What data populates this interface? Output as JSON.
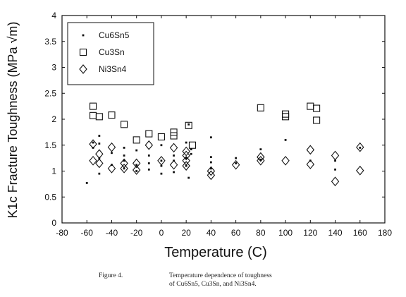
{
  "chart_data": {
    "type": "scatter",
    "title": "",
    "xlabel": "Temperature (C)",
    "ylabel": "K1c Fracture Toughness (MPa √m)",
    "xlim": [
      -80,
      180
    ],
    "ylim": [
      0,
      4
    ],
    "x_ticks": [
      "-80",
      "-60",
      "-40",
      "-20",
      "0",
      "20",
      "40",
      "60",
      "80",
      "100",
      "120",
      "140",
      "160",
      "180"
    ],
    "y_ticks": [
      "0",
      "0.5",
      "1",
      "1.5",
      "2",
      "2.5",
      "3",
      "3.5",
      "4"
    ],
    "legend_position": "top-left",
    "grid": false,
    "series": [
      {
        "name": "Cu6Sn5",
        "marker": "dot",
        "points": [
          [
            -60,
            0.77
          ],
          [
            -55,
            1.55
          ],
          [
            -55,
            1.45
          ],
          [
            -50,
            1.68
          ],
          [
            -50,
            1.53
          ],
          [
            -50,
            1.25
          ],
          [
            -50,
            0.95
          ],
          [
            -40,
            1.35
          ],
          [
            -40,
            1.12
          ],
          [
            -30,
            1.45
          ],
          [
            -30,
            1.3
          ],
          [
            -30,
            1.2
          ],
          [
            -30,
            1.05
          ],
          [
            -20,
            1.4
          ],
          [
            -20,
            1.12
          ],
          [
            -20,
            1.0
          ],
          [
            -10,
            1.3
          ],
          [
            -10,
            1.15
          ],
          [
            -10,
            1.03
          ],
          [
            0,
            1.5
          ],
          [
            0,
            1.2
          ],
          [
            0,
            1.1
          ],
          [
            0,
            0.95
          ],
          [
            10,
            1.3
          ],
          [
            10,
            1.2
          ],
          [
            10,
            0.98
          ],
          [
            20,
            1.55
          ],
          [
            20,
            1.25
          ],
          [
            20,
            1.1
          ],
          [
            22,
            1.9
          ],
          [
            22,
            0.87
          ],
          [
            24,
            1.42
          ],
          [
            24,
            1.33
          ],
          [
            40,
            1.65
          ],
          [
            40,
            1.27
          ],
          [
            40,
            1.17
          ],
          [
            40,
            1.05
          ],
          [
            60,
            1.25
          ],
          [
            60,
            1.15
          ],
          [
            80,
            1.42
          ],
          [
            80,
            1.22
          ],
          [
            100,
            1.6
          ],
          [
            120,
            1.2
          ],
          [
            140,
            1.2
          ],
          [
            140,
            1.03
          ],
          [
            160,
            1.45
          ]
        ]
      },
      {
        "name": "Cu3Sn",
        "marker": "square",
        "points": [
          [
            -55,
            2.25
          ],
          [
            -55,
            2.07
          ],
          [
            -50,
            2.05
          ],
          [
            -40,
            2.08
          ],
          [
            -30,
            1.9
          ],
          [
            -20,
            1.6
          ],
          [
            -10,
            1.72
          ],
          [
            0,
            1.66
          ],
          [
            10,
            1.75
          ],
          [
            10,
            1.68
          ],
          [
            22,
            1.88
          ],
          [
            25,
            1.5
          ],
          [
            80,
            2.22
          ],
          [
            100,
            2.1
          ],
          [
            100,
            2.05
          ],
          [
            120,
            2.25
          ],
          [
            125,
            2.21
          ],
          [
            125,
            1.98
          ]
        ]
      },
      {
        "name": "Ni3Sn4",
        "marker": "diamond",
        "points": [
          [
            -55,
            1.52
          ],
          [
            -55,
            1.2
          ],
          [
            -50,
            1.33
          ],
          [
            -50,
            1.15
          ],
          [
            -40,
            1.46
          ],
          [
            -40,
            1.05
          ],
          [
            -30,
            1.15
          ],
          [
            -30,
            1.05
          ],
          [
            -20,
            1.15
          ],
          [
            -20,
            1.02
          ],
          [
            -10,
            1.5
          ],
          [
            0,
            1.2
          ],
          [
            10,
            1.45
          ],
          [
            10,
            1.12
          ],
          [
            20,
            1.38
          ],
          [
            20,
            1.3
          ],
          [
            20,
            1.2
          ],
          [
            20,
            1.1
          ],
          [
            40,
            1.0
          ],
          [
            40,
            0.92
          ],
          [
            60,
            1.12
          ],
          [
            80,
            1.27
          ],
          [
            80,
            1.2
          ],
          [
            100,
            1.2
          ],
          [
            120,
            1.41
          ],
          [
            120,
            1.13
          ],
          [
            140,
            1.3
          ],
          [
            140,
            0.8
          ],
          [
            160,
            1.46
          ],
          [
            160,
            1.01
          ]
        ]
      }
    ]
  },
  "caption": {
    "label": "Figure 4.",
    "line1": "Temperature dependence of toughness",
    "line2": "of Cu6Sn5, Cu3Sn, and Ni3Sn4."
  }
}
